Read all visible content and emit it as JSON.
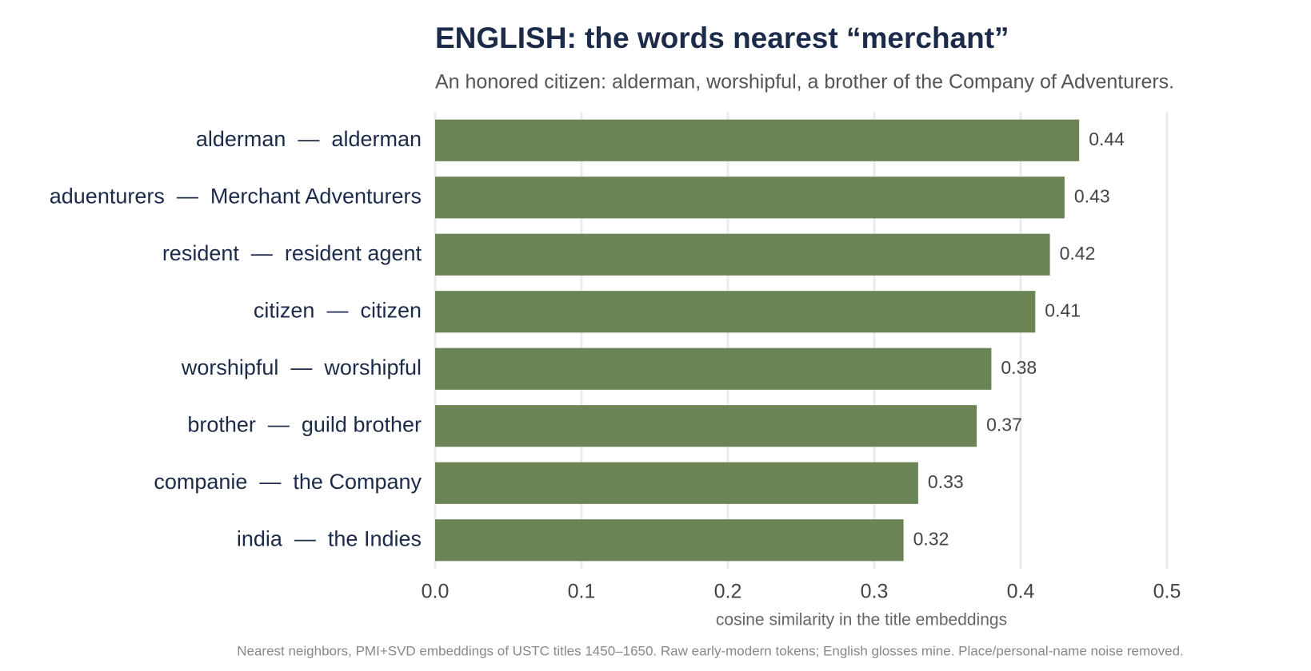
{
  "chart_data": {
    "type": "bar",
    "orientation": "horizontal",
    "title": "ENGLISH: the words nearest “merchant”",
    "subtitle": "An honored citizen: alderman, worshipful, a brother of the Company of Adventurers.",
    "x_label": "cosine similarity in the title embeddings",
    "caption": "Nearest neighbors, PMI+SVD embeddings of USTC titles 1450–1650. Raw early-modern tokens; English glosses mine. Place/personal-name noise removed.",
    "categories": [
      "alderman  —  alderman",
      "aduenturers  —  Merchant Adventurers",
      "resident  —  resident agent",
      "citizen  —  citizen",
      "worshipful  —  worshipful",
      "brother  —  guild brother",
      "companie  —  the Company",
      "india  —  the Indies"
    ],
    "values": [
      0.44,
      0.43,
      0.42,
      0.41,
      0.38,
      0.37,
      0.33,
      0.32
    ],
    "color": "#6a8455",
    "xlim": [
      0,
      0.5
    ],
    "xticks": [
      {
        "value": 0,
        "label": "0.0"
      },
      0.1,
      0.2,
      0.3,
      0.4,
      0.5
    ],
    "grid": true
  }
}
